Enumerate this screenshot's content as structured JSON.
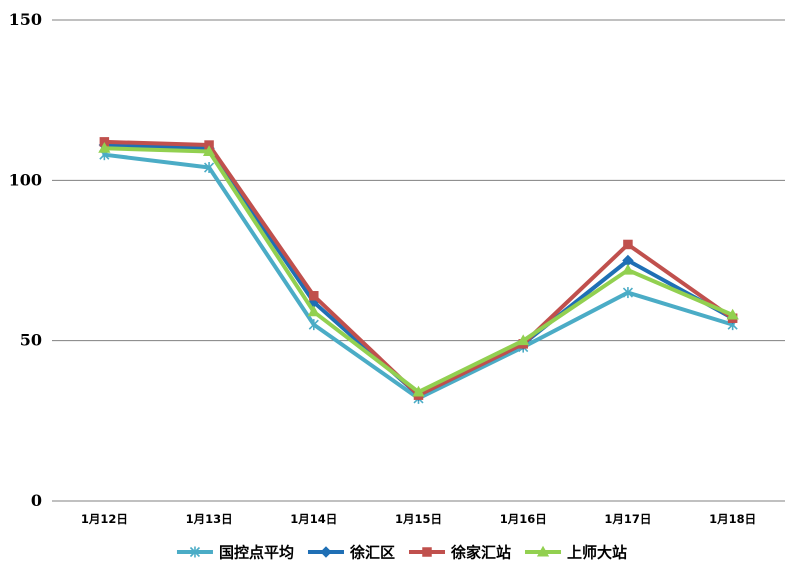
{
  "chart_data": {
    "type": "line",
    "title": "",
    "xlabel": "",
    "ylabel": "",
    "ylim": [
      0,
      150
    ],
    "yticks": [
      0,
      50,
      100,
      150
    ],
    "grid": true,
    "legend_position": "bottom",
    "categories": [
      "1月12日",
      "1月13日",
      "1月14日",
      "1月15日",
      "1月16日",
      "1月17日",
      "1月18日"
    ],
    "series": [
      {
        "name": "国控点平均",
        "color": "#4BACC6",
        "marker": "asterisk",
        "values": [
          108,
          104,
          55,
          32,
          48,
          65,
          55
        ]
      },
      {
        "name": "徐汇区",
        "color": "#1F6FB5",
        "marker": "diamond",
        "values": [
          111,
          110,
          62,
          33,
          49,
          75,
          57
        ]
      },
      {
        "name": "徐家汇站",
        "color": "#C0504D",
        "marker": "square",
        "values": [
          112,
          111,
          64,
          33,
          49,
          80,
          57
        ]
      },
      {
        "name": "上师大站",
        "color": "#92D050",
        "marker": "triangle",
        "values": [
          110,
          109,
          59,
          34,
          50,
          72,
          58
        ]
      }
    ]
  }
}
